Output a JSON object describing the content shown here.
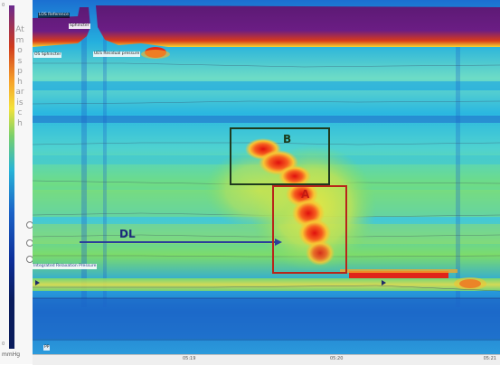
{
  "scale": {
    "title": "Atmospharisch",
    "unit": "mmHg",
    "tick_top": "0",
    "tick_bottom": "0"
  },
  "plot": {
    "labels": {
      "top_left": "LOS Reference",
      "top_sphincter": "Sphincter",
      "lower_sphincter": "OS Sphincter",
      "ues_residual": "UES Residual pressure",
      "integrated": "Integrated Relaxation Pressure",
      "ppd": "PP"
    },
    "regions": {
      "b": "B",
      "a": "A",
      "dl": "DL"
    },
    "colors": {
      "box_b": "#1e3a1e",
      "box_a": "#b8261a",
      "arrow": "#2b3f9a"
    }
  },
  "axis": {
    "tick_1": "05:19",
    "tick_2": "05:20",
    "tick_3": "",
    "end": "05:21"
  }
}
